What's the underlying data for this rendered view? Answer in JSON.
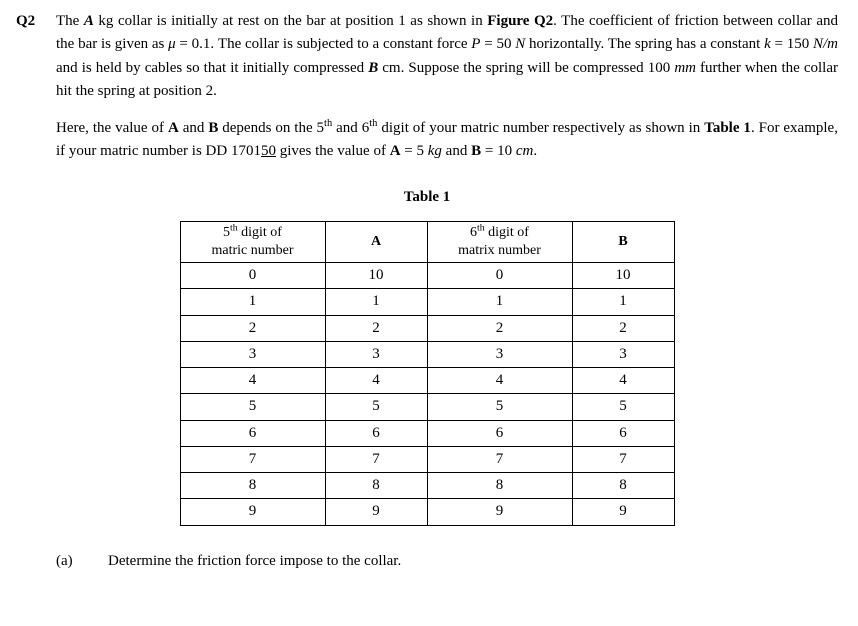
{
  "question_label": "Q2",
  "para1": {
    "pre": "The ",
    "A": "A",
    "mid1": " kg collar is initially at rest on the bar at position 1 as shown in ",
    "figref": "Figure Q2",
    "mid2": ". The coefficient of friction between collar and the bar is given as ",
    "mu": "μ",
    "mid3": " = 0.1. The collar is subjected to a constant force ",
    "P": "P",
    "mid4": " = 50 ",
    "N": "N ",
    "mid5": "horizontally. The spring has a constant ",
    "k": "k",
    "mid6": " = 150 ",
    "Nm": "N/m",
    "mid7": " and is held by cables so that it initially compressed ",
    "B": "B",
    "mid8": " cm. Suppose the spring will be compressed 100 ",
    "mm": "mm",
    "mid9": " further when the collar hit the spring at position 2."
  },
  "para2": {
    "l1": "Here, the value of ",
    "A": "A",
    "l2": " and ",
    "B": "B",
    "l3": " depends on the 5",
    "sup1": "th",
    "l4": " and 6",
    "sup2": "th",
    "l5": " digit of your matric number respectively as shown in ",
    "tblref": "Table 1",
    "l6": ". For example, if your matric number is DD 1701",
    "ul": "50",
    "l7": " gives the value of ",
    "A2": "A",
    "l8": " = 5 ",
    "kg": "kg",
    "l9": " and ",
    "B2": "B",
    "l10": " = 10 ",
    "cm": "cm",
    "l11": "."
  },
  "table_title": "Table 1",
  "table": {
    "headers": {
      "h1a": "5",
      "h1sup": "th",
      "h1b": " digit of",
      "h1c": "matric number",
      "h2": "A",
      "h3a": "6",
      "h3sup": "th",
      "h3b": " digit of",
      "h3c": "matrix number",
      "h4": "B"
    },
    "rows": [
      {
        "d5": "0",
        "a": "10",
        "d6": "0",
        "b": "10"
      },
      {
        "d5": "1",
        "a": "1",
        "d6": "1",
        "b": "1"
      },
      {
        "d5": "2",
        "a": "2",
        "d6": "2",
        "b": "2"
      },
      {
        "d5": "3",
        "a": "3",
        "d6": "3",
        "b": "3"
      },
      {
        "d5": "4",
        "a": "4",
        "d6": "4",
        "b": "4"
      },
      {
        "d5": "5",
        "a": "5",
        "d6": "5",
        "b": "5"
      },
      {
        "d5": "6",
        "a": "6",
        "d6": "6",
        "b": "6"
      },
      {
        "d5": "7",
        "a": "7",
        "d6": "7",
        "b": "7"
      },
      {
        "d5": "8",
        "a": "8",
        "d6": "8",
        "b": "8"
      },
      {
        "d5": "9",
        "a": "9",
        "d6": "9",
        "b": "9"
      }
    ]
  },
  "part_a": {
    "label": "(a)",
    "text": "Determine the friction force impose to the collar."
  }
}
